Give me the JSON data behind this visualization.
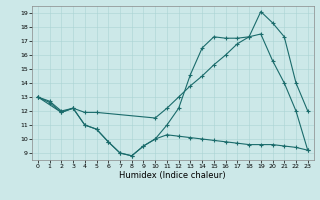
{
  "xlabel": "Humidex (Indice chaleur)",
  "xlim": [
    -0.5,
    23.5
  ],
  "ylim": [
    8.5,
    19.5
  ],
  "xticks": [
    0,
    1,
    2,
    3,
    4,
    5,
    6,
    7,
    8,
    9,
    10,
    11,
    12,
    13,
    14,
    15,
    16,
    17,
    18,
    19,
    20,
    21,
    22,
    23
  ],
  "yticks": [
    9,
    10,
    11,
    12,
    13,
    14,
    15,
    16,
    17,
    18,
    19
  ],
  "bg_color": "#cce8e8",
  "line_color": "#1a6b6b",
  "line1_x": [
    0,
    1,
    2,
    3,
    4,
    5,
    6,
    7,
    8,
    9,
    10,
    11,
    12,
    13,
    14,
    15,
    16,
    17,
    18,
    19,
    20,
    21,
    22,
    23
  ],
  "line1_y": [
    13.0,
    12.7,
    12.0,
    12.2,
    11.0,
    10.7,
    9.8,
    9.0,
    8.8,
    9.5,
    10.0,
    11.0,
    12.2,
    14.6,
    16.5,
    17.3,
    17.2,
    17.2,
    17.3,
    19.1,
    18.3,
    17.3,
    14.0,
    12.0
  ],
  "line2_x": [
    0,
    2,
    3,
    4,
    5,
    10,
    11,
    12,
    13,
    14,
    15,
    16,
    17,
    18,
    19,
    20,
    21,
    22,
    23
  ],
  "line2_y": [
    13.0,
    11.9,
    12.2,
    11.9,
    11.9,
    11.5,
    12.2,
    13.0,
    13.8,
    14.5,
    15.3,
    16.0,
    16.8,
    17.3,
    17.5,
    15.6,
    14.0,
    12.0,
    9.2
  ],
  "line3_x": [
    0,
    1,
    2,
    3,
    4,
    5,
    6,
    7,
    8,
    9,
    10,
    11,
    12,
    13,
    14,
    15,
    16,
    17,
    18,
    19,
    20,
    21,
    22,
    23
  ],
  "line3_y": [
    13.0,
    12.6,
    11.9,
    12.2,
    11.0,
    10.7,
    9.8,
    9.0,
    8.8,
    9.5,
    10.0,
    10.3,
    10.2,
    10.1,
    10.0,
    9.9,
    9.8,
    9.7,
    9.6,
    9.6,
    9.6,
    9.5,
    9.4,
    9.2
  ]
}
